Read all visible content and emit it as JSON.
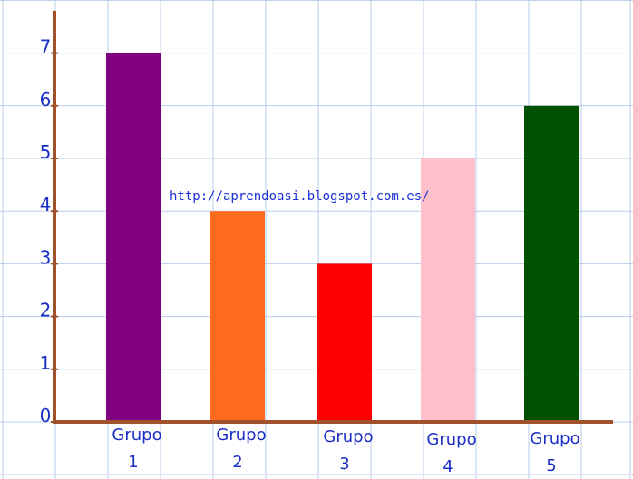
{
  "chart_data": {
    "type": "bar",
    "categories": [
      {
        "line1": "Grupo",
        "line2": "1"
      },
      {
        "line1": "Grupo",
        "line2": "2"
      },
      {
        "line1": "Grupo",
        "line2": "3"
      },
      {
        "line1": "Grupo",
        "line2": "4"
      },
      {
        "line1": "Grupo",
        "line2": "5"
      }
    ],
    "values": [
      7,
      4,
      3,
      5,
      6
    ],
    "bar_colors": [
      "#800080",
      "#ff6a1f",
      "#ff0000",
      "#ffc0cb",
      "#005200"
    ],
    "ylim": [
      0,
      7
    ],
    "y_ticks": [
      "0",
      "1",
      "2",
      "3",
      "4",
      "5",
      "6",
      "7"
    ],
    "grid": true,
    "grid_color": "#b9cde8",
    "axis_color": "#a0522d",
    "label_color": "#1c2fc4",
    "watermark": "http://aprendoasi.blogspot.com.es/"
  }
}
